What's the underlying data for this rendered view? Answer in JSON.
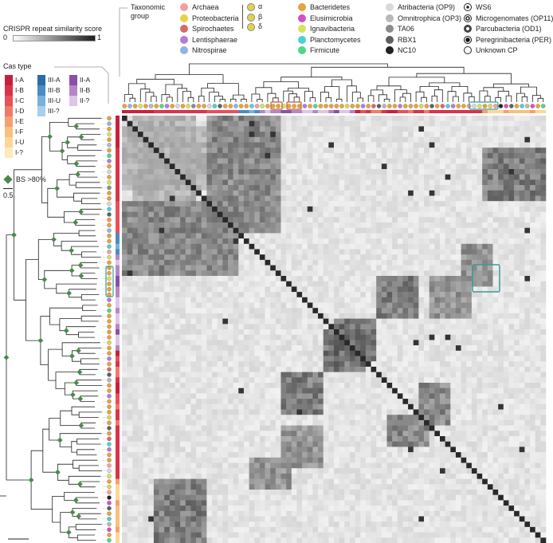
{
  "score_legend": {
    "title": "CRISPR repeat similarity score",
    "min_label": "0",
    "max_label": "1",
    "gradient": [
      "#ffffff",
      "#1e1e1e"
    ]
  },
  "taxonomic_group": {
    "title_line1": "Taxonomic",
    "title_line2": "group",
    "col1": [
      {
        "label": "Archaea",
        "color": "#f4a0a0"
      },
      {
        "label": "Proteobacteria",
        "color": "#e6d24a"
      },
      {
        "label": "Spirochaetes",
        "color": "#d46a6a"
      },
      {
        "label": "Lentisphaerae",
        "color": "#b37cd6"
      },
      {
        "label": "Nitrospirae",
        "color": "#8fb4e8"
      }
    ],
    "proteo_sub": [
      "α",
      "β",
      "δ"
    ],
    "col2": [
      {
        "label": "Bacteridetes",
        "color": "#e8a23c"
      },
      {
        "label": "Elusimicrobia",
        "color": "#d64fc2"
      },
      {
        "label": "Ignavibacteria",
        "color": "#d8e25a"
      },
      {
        "label": "Planctomycetes",
        "color": "#4fd1d4"
      },
      {
        "label": "Firmicute",
        "color": "#4fd88a"
      }
    ],
    "col3": [
      {
        "label": "Atribacteria (OP9)",
        "color": "#d8d8d8"
      },
      {
        "label": "Omnitrophica (OP3)",
        "color": "#b8b8b8"
      },
      {
        "label": "TA06",
        "color": "#8c8c8c"
      },
      {
        "label": "RBX1",
        "color": "#606060"
      },
      {
        "label": "NC10",
        "color": "#222222"
      }
    ],
    "col4": [
      {
        "label": "WS6",
        "style": "ring-dot"
      },
      {
        "label": "Microgenomates (OP11)",
        "style": "ring-ring"
      },
      {
        "label": "Parcubacteria (OD1)",
        "style": "thick-ring"
      },
      {
        "label": "Peregrinibacteria (PER)",
        "style": "black-dot"
      },
      {
        "label": "Unknown CP",
        "style": "open"
      }
    ]
  },
  "cas_type": {
    "title": "Cas type",
    "col1": [
      {
        "label": "I-A",
        "color": "#c8203c"
      },
      {
        "label": "I-B",
        "color": "#d8344a"
      },
      {
        "label": "I-C",
        "color": "#e8505a"
      },
      {
        "label": "I-D",
        "color": "#f07a68"
      },
      {
        "label": "I-E",
        "color": "#f5a070"
      },
      {
        "label": "I-F",
        "color": "#f8c080"
      },
      {
        "label": "I-U",
        "color": "#fbd898"
      },
      {
        "label": "I-?",
        "color": "#fdeab8"
      }
    ],
    "col2": [
      {
        "label": "III-A",
        "color": "#2c6aa8"
      },
      {
        "label": "III-B",
        "color": "#4a8cc4"
      },
      {
        "label": "III-U",
        "color": "#78b2dc"
      },
      {
        "label": "III-?",
        "color": "#a8d0ec"
      }
    ],
    "col3": [
      {
        "label": "II-A",
        "color": "#8a4fa8"
      },
      {
        "label": "II-B",
        "color": "#b486c8"
      },
      {
        "label": "II-?",
        "color": "#dcc6e6"
      }
    ]
  },
  "bootstrap_legend": {
    "label": "BS >80%",
    "color": "#4a8a4a"
  },
  "scale_bar": {
    "label": "0.5"
  }
}
